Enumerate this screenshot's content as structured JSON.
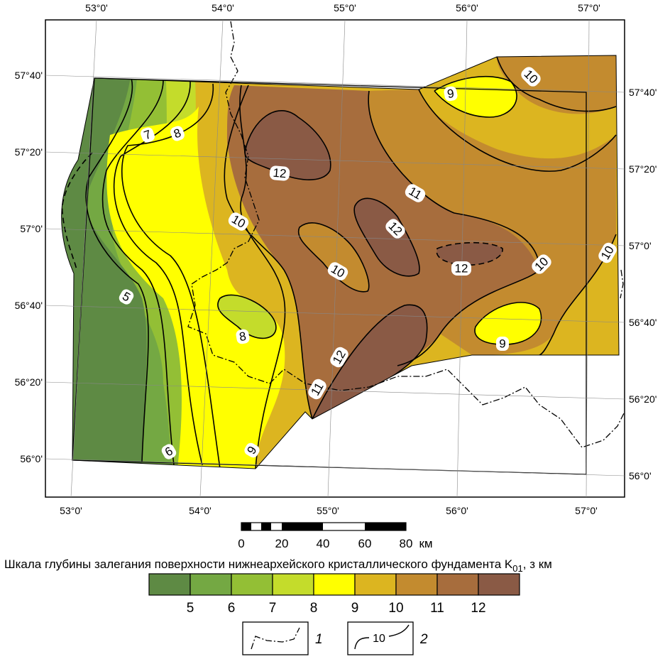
{
  "map": {
    "lon_labels": [
      "53°0'",
      "54°0'",
      "55°0'",
      "56°0'",
      "57°0'"
    ],
    "lat_labels_left": [
      "57°40'",
      "57°20'",
      "57°0'",
      "56°40'",
      "56°20'",
      "56°0'"
    ],
    "lat_labels_right": [
      "57°40'",
      "57°20'",
      "57°0'",
      "56°40'",
      "56°20'",
      "56°0'"
    ],
    "contour_labels": [
      "7",
      "8",
      "5",
      "6",
      "8",
      "9",
      "10",
      "12",
      "11",
      "12",
      "11",
      "10",
      "12",
      "12",
      "9",
      "10",
      "10",
      "9"
    ]
  },
  "scale_bar": {
    "ticks": [
      "0",
      "20",
      "40",
      "60",
      "80"
    ],
    "unit": "км"
  },
  "legend": {
    "title_main": "Шкала глубины залегания поверхности нижнеархейского кристаллического фундамента K",
    "title_sub": "01",
    "title_tail": ", з км",
    "colors": [
      "#5e8a44",
      "#74a843",
      "#93bf35",
      "#c4dc2b",
      "#ffff00",
      "#dcb520",
      "#c38b2f",
      "#a76d3d",
      "#8a5a45"
    ],
    "values": [
      "5",
      "6",
      "7",
      "8",
      "9",
      "10",
      "11",
      "12"
    ]
  },
  "key": {
    "item1_label": "1",
    "item2_value": "10",
    "item2_label": "2"
  }
}
